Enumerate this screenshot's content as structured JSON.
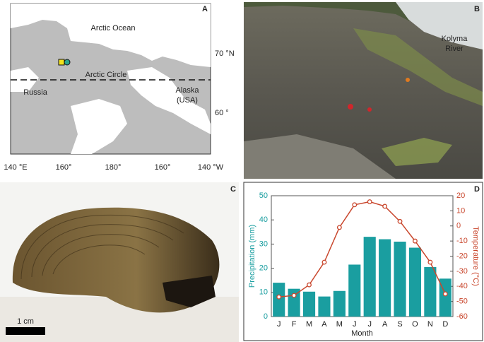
{
  "figure": {
    "panel_labels": [
      "A",
      "B",
      "C",
      "D"
    ]
  },
  "map": {
    "ocean": "Arctic Ocean",
    "circle": "Arctic Circle",
    "russia": "Russia",
    "alaska": "Alaska",
    "usa": "(USA)",
    "lon_labels": [
      "140 °E",
      "160°",
      "180°",
      "160°",
      "140 °W"
    ],
    "lat_labels": [
      "70 °N",
      "60 °"
    ]
  },
  "photo_b": {
    "river": [
      "Kolyma",
      "River"
    ]
  },
  "photo_c": {
    "scale": "1 cm"
  },
  "chart_data": {
    "type": "bar",
    "x_label": "Month",
    "y_label": "Precipitation (mm)",
    "y2_label": "Temperature (°C)",
    "categories": [
      "J",
      "F",
      "M",
      "A",
      "M",
      "J",
      "J",
      "A",
      "S",
      "O",
      "N",
      "D"
    ],
    "series": [
      {
        "type": "bar",
        "color": "#1a9ea0",
        "values": [
          14,
          11.5,
          10.3,
          8.3,
          10.6,
          21.5,
          33,
          32,
          31,
          28.5,
          20.5,
          15.7
        ]
      },
      {
        "type": "line",
        "axis": "y2",
        "color": "#c9472d",
        "values": [
          -47,
          -46,
          -39,
          -24,
          -1,
          14,
          16,
          13,
          3,
          -10,
          -24,
          -45
        ]
      }
    ],
    "ylim": [
      0,
      50
    ],
    "yticks": [
      0,
      10,
      20,
      30,
      40,
      50
    ],
    "y2lim": [
      -60,
      20
    ],
    "y2ticks": [
      -60,
      -50,
      -40,
      -30,
      -20,
      -10,
      0,
      10,
      20
    ]
  }
}
